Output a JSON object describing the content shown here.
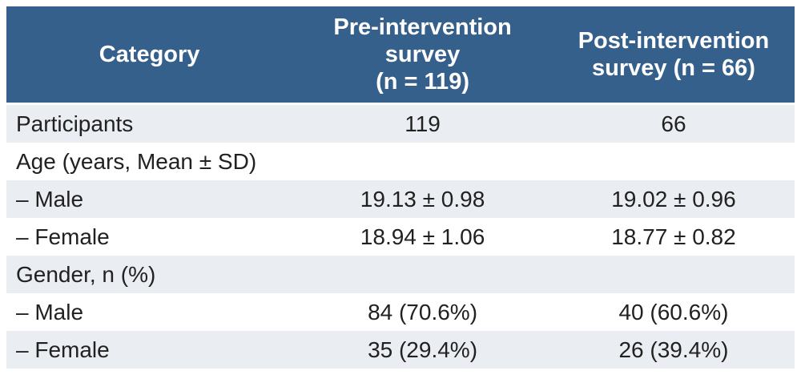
{
  "table": {
    "columns": [
      {
        "label": "Category"
      },
      {
        "label": "Pre-intervention\nsurvey\n(n = 119)"
      },
      {
        "label": "Post-intervention\nsurvey (n = 66)"
      }
    ],
    "rows": [
      {
        "category": "Participants",
        "pre": "119",
        "post": "66"
      },
      {
        "category": "Age (years, Mean ± SD)",
        "pre": "",
        "post": ""
      },
      {
        "category": "– Male",
        "pre": "19.13 ± 0.98",
        "post": "19.02 ± 0.96"
      },
      {
        "category": "– Female",
        "pre": "18.94 ± 1.06",
        "post": "18.77 ± 0.82"
      },
      {
        "category": "Gender, n (%)",
        "pre": "",
        "post": ""
      },
      {
        "category": "– Male",
        "pre": "84 (70.6%)",
        "post": "40 (60.6%)"
      },
      {
        "category": "– Female",
        "pre": "35 (29.4%)",
        "post": "26 (39.4%)"
      }
    ],
    "colors": {
      "header_bg": "#36608C",
      "header_text": "#FFFFFF",
      "stripe_row_bg": "#EAEDF1",
      "plain_row_bg": "#FFFFFF",
      "body_text": "#212121"
    }
  }
}
